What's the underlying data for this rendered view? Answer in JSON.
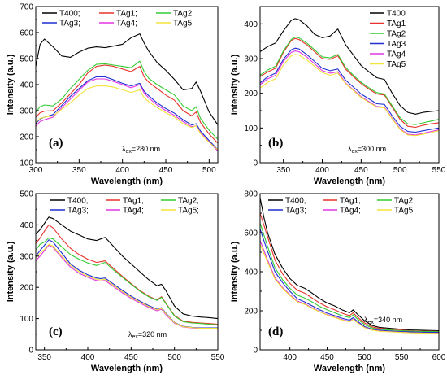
{
  "colors": {
    "T400": "#000000",
    "TAg1": "#e8312a",
    "TAg2": "#33cc33",
    "TAg3": "#1f2fd0",
    "TAg4": "#e335e3",
    "TAg5": "#f2e33a"
  },
  "chart_data": [
    {
      "type": "line",
      "panel": "(a)",
      "xlabel": "Wavelength (nm)",
      "ylabel": "Intensity (a.u.)",
      "annotation": {
        "lambda": "λ",
        "sub": "ex",
        "text": "=280 nm"
      },
      "xlim": [
        300,
        510
      ],
      "ylim": [
        100,
        700
      ],
      "xticks": [
        300,
        350,
        400,
        450,
        500
      ],
      "yticks": [
        100,
        200,
        300,
        400,
        500,
        600,
        700
      ],
      "legend_cols": 3,
      "legend_labels": [
        "T400;",
        "TAg1;",
        "TAg2;",
        "TAg3;",
        "TAg4;",
        "TAg5;"
      ],
      "x": [
        300,
        305,
        310,
        320,
        330,
        340,
        350,
        360,
        370,
        380,
        390,
        400,
        410,
        420,
        425,
        430,
        440,
        450,
        460,
        470,
        480,
        485,
        490,
        500,
        510
      ],
      "series": [
        {
          "key": "T400",
          "values": [
            470,
            555,
            575,
            545,
            510,
            505,
            525,
            540,
            545,
            542,
            548,
            555,
            580,
            595,
            560,
            530,
            485,
            455,
            420,
            380,
            385,
            410,
            375,
            295,
            245
          ]
        },
        {
          "key": "TAg1",
          "values": [
            275,
            292,
            298,
            300,
            330,
            365,
            400,
            445,
            470,
            475,
            470,
            460,
            450,
            470,
            430,
            410,
            385,
            360,
            340,
            300,
            280,
            295,
            255,
            210,
            175
          ]
        },
        {
          "key": "TAg2",
          "values": [
            295,
            315,
            322,
            318,
            345,
            385,
            420,
            455,
            478,
            480,
            475,
            470,
            465,
            490,
            450,
            425,
            400,
            380,
            360,
            318,
            300,
            315,
            270,
            225,
            190
          ]
        },
        {
          "key": "TAg3",
          "values": [
            250,
            268,
            275,
            285,
            320,
            355,
            385,
            415,
            430,
            430,
            418,
            405,
            395,
            405,
            375,
            358,
            330,
            308,
            290,
            265,
            245,
            250,
            222,
            185,
            150
          ]
        },
        {
          "key": "TAg4",
          "values": [
            240,
            258,
            265,
            275,
            312,
            345,
            378,
            410,
            422,
            422,
            412,
            400,
            388,
            400,
            368,
            350,
            322,
            300,
            282,
            258,
            238,
            242,
            215,
            180,
            145
          ]
        },
        {
          "key": "TAg5",
          "values": [
            255,
            270,
            275,
            280,
            305,
            330,
            360,
            385,
            395,
            395,
            390,
            380,
            370,
            380,
            350,
            335,
            312,
            292,
            275,
            250,
            235,
            242,
            212,
            178,
            150
          ]
        }
      ]
    },
    {
      "type": "line",
      "panel": "(b)",
      "xlabel": "Wavelength (nm)",
      "ylabel": "Intensity (a.u.)",
      "annotation": {
        "lambda": "λ",
        "sub": "ex",
        "text": "=300 nm"
      },
      "xlim": [
        320,
        550
      ],
      "ylim": [
        0,
        450
      ],
      "xticks": [
        350,
        400,
        450,
        500,
        550
      ],
      "yticks": [
        0,
        100,
        200,
        300,
        400
      ],
      "legend_cols": 1,
      "legend_labels": [
        "T400",
        "TAg1",
        "TAg2",
        "TAg3",
        "TAg4",
        "TAg5"
      ],
      "x": [
        320,
        330,
        340,
        350,
        360,
        365,
        370,
        380,
        390,
        400,
        410,
        420,
        430,
        440,
        450,
        460,
        470,
        480,
        490,
        500,
        510,
        520,
        530,
        540,
        550
      ],
      "series": [
        {
          "key": "T400",
          "values": [
            320,
            335,
            345,
            380,
            410,
            415,
            412,
            395,
            370,
            360,
            365,
            385,
            340,
            310,
            280,
            262,
            245,
            240,
            200,
            165,
            145,
            140,
            145,
            148,
            150
          ]
        },
        {
          "key": "TAg1",
          "values": [
            248,
            262,
            272,
            318,
            352,
            358,
            355,
            340,
            320,
            300,
            298,
            308,
            270,
            248,
            228,
            212,
            198,
            195,
            160,
            125,
            105,
            102,
            108,
            112,
            115
          ]
        },
        {
          "key": "TAg2",
          "values": [
            252,
            268,
            278,
            322,
            355,
            362,
            360,
            345,
            325,
            305,
            302,
            312,
            275,
            252,
            232,
            216,
            202,
            198,
            164,
            130,
            112,
            110,
            115,
            120,
            125
          ]
        },
        {
          "key": "TAg3",
          "values": [
            230,
            248,
            258,
            298,
            325,
            330,
            328,
            312,
            292,
            272,
            265,
            270,
            238,
            218,
            198,
            184,
            170,
            168,
            135,
            105,
            90,
            88,
            92,
            96,
            100
          ]
        },
        {
          "key": "TAg4",
          "values": [
            225,
            242,
            252,
            292,
            318,
            322,
            320,
            305,
            285,
            265,
            258,
            262,
            230,
            210,
            190,
            176,
            162,
            160,
            128,
            98,
            82,
            80,
            85,
            90,
            95
          ]
        },
        {
          "key": "TAg5",
          "values": [
            215,
            232,
            242,
            282,
            308,
            312,
            310,
            296,
            278,
            260,
            252,
            258,
            228,
            208,
            188,
            174,
            160,
            158,
            126,
            96,
            80,
            78,
            82,
            87,
            92
          ]
        }
      ]
    },
    {
      "type": "line",
      "panel": "(c)",
      "xlabel": "Wavelength (nm)",
      "ylabel": "Intensity (a.u.)",
      "annotation": {
        "lambda": "λ",
        "sub": "ex",
        "text": "=320 nm"
      },
      "xlim": [
        340,
        550
      ],
      "ylim": [
        0,
        500
      ],
      "xticks": [
        350,
        400,
        450,
        500,
        550
      ],
      "yticks": [
        0,
        100,
        200,
        300,
        400,
        500
      ],
      "legend_cols": 3,
      "legend_labels": [
        "T400;",
        "TAg1;",
        "TAg2;",
        "TAg3;",
        "TAg4;",
        "TAg5;"
      ],
      "x": [
        340,
        345,
        350,
        355,
        360,
        370,
        380,
        390,
        400,
        410,
        415,
        420,
        430,
        440,
        450,
        460,
        470,
        480,
        485,
        490,
        500,
        510,
        520,
        530,
        540,
        550
      ],
      "series": [
        {
          "key": "T400",
          "values": [
            370,
            385,
            405,
            425,
            420,
            400,
            380,
            368,
            355,
            350,
            355,
            360,
            330,
            300,
            275,
            250,
            225,
            205,
            210,
            190,
            140,
            115,
            108,
            105,
            103,
            100
          ]
        },
        {
          "key": "TAg1",
          "values": [
            340,
            358,
            380,
            400,
            390,
            355,
            325,
            305,
            290,
            280,
            282,
            285,
            260,
            235,
            212,
            190,
            172,
            160,
            170,
            150,
            110,
            92,
            88,
            86,
            84,
            82
          ]
        },
        {
          "key": "TAg2",
          "values": [
            320,
            338,
            345,
            358,
            355,
            330,
            305,
            290,
            278,
            270,
            275,
            280,
            255,
            232,
            210,
            188,
            170,
            158,
            168,
            148,
            108,
            90,
            86,
            84,
            82,
            80
          ]
        },
        {
          "key": "TAg3",
          "values": [
            300,
            318,
            335,
            352,
            345,
            310,
            275,
            255,
            240,
            230,
            228,
            230,
            210,
            190,
            172,
            156,
            142,
            130,
            135,
            118,
            88,
            75,
            72,
            70,
            70,
            70
          ]
        },
        {
          "key": "TAg4",
          "values": [
            285,
            300,
            318,
            335,
            328,
            295,
            265,
            245,
            232,
            222,
            220,
            222,
            202,
            182,
            165,
            150,
            136,
            125,
            130,
            113,
            85,
            73,
            70,
            68,
            68,
            68
          ]
        },
        {
          "key": "TAg5",
          "values": [
            295,
            310,
            322,
            338,
            332,
            300,
            270,
            250,
            236,
            226,
            224,
            226,
            206,
            186,
            168,
            153,
            139,
            128,
            133,
            116,
            87,
            74,
            71,
            69,
            69,
            69
          ]
        }
      ]
    },
    {
      "type": "line",
      "panel": "(d)",
      "xlabel": "Wavelength (nm)",
      "ylabel": "Intensity (a.u.)",
      "annotation": {
        "lambda": "λ",
        "sub": "ex",
        "text": "=340 nm"
      },
      "xlim": [
        360,
        600
      ],
      "ylim": [
        0,
        800
      ],
      "xticks": [
        400,
        450,
        500,
        550,
        600
      ],
      "yticks": [
        0,
        200,
        400,
        600,
        800
      ],
      "legend_cols": 3,
      "legend_labels": [
        "T400;",
        "TAg1;",
        "TAg2;",
        "TAg3;",
        "TAg4;",
        "TAg5;"
      ],
      "x": [
        360,
        365,
        370,
        380,
        390,
        400,
        410,
        420,
        430,
        440,
        450,
        460,
        470,
        480,
        485,
        490,
        500,
        510,
        520,
        540,
        560,
        580,
        600
      ],
      "series": [
        {
          "key": "T400",
          "values": [
            780,
            680,
            600,
            490,
            420,
            365,
            330,
            315,
            290,
            262,
            240,
            225,
            205,
            190,
            205,
            185,
            150,
            125,
            115,
            108,
            102,
            100,
            98
          ]
        },
        {
          "key": "TAg1",
          "values": [
            700,
            640,
            580,
            460,
            390,
            340,
            305,
            290,
            265,
            240,
            220,
            205,
            188,
            175,
            190,
            170,
            138,
            118,
            110,
            103,
            98,
            96,
            94
          ]
        },
        {
          "key": "TAg2",
          "values": [
            650,
            590,
            530,
            420,
            360,
            315,
            280,
            265,
            245,
            222,
            205,
            190,
            175,
            165,
            180,
            160,
            130,
            112,
            105,
            100,
            96,
            94,
            93
          ]
        },
        {
          "key": "TAg3",
          "values": [
            620,
            560,
            505,
            400,
            345,
            300,
            262,
            245,
            225,
            205,
            188,
            175,
            162,
            152,
            165,
            148,
            120,
            105,
            100,
            95,
            92,
            90,
            89
          ]
        },
        {
          "key": "TAg4",
          "values": [
            560,
            510,
            460,
            370,
            320,
            282,
            250,
            235,
            215,
            196,
            180,
            168,
            155,
            145,
            158,
            142,
            115,
            102,
            96,
            92,
            88,
            86,
            85
          ]
        },
        {
          "key": "TAg5",
          "values": [
            540,
            495,
            450,
            362,
            315,
            278,
            246,
            232,
            212,
            194,
            178,
            166,
            153,
            143,
            156,
            140,
            114,
            101,
            95,
            91,
            87,
            85,
            84
          ]
        }
      ]
    }
  ]
}
